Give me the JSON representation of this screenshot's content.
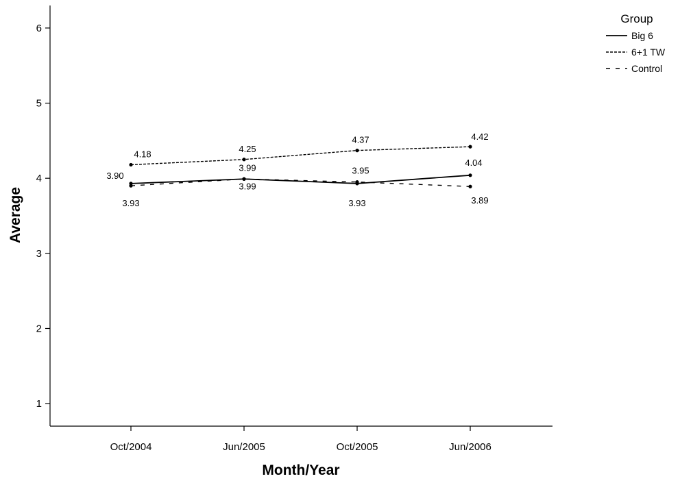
{
  "chart_data": {
    "type": "line",
    "xlabel": "Month/Year",
    "ylabel": "Average",
    "categories": [
      "Oct/2004",
      "Jun/2005",
      "Oct/2005",
      "Jun/2006"
    ],
    "ylim": [
      0.7,
      6.3
    ],
    "yticks": [
      1,
      2,
      3,
      4,
      5,
      6
    ],
    "grid": false,
    "legend": {
      "title": "Group",
      "placement": "top-right"
    },
    "series": [
      {
        "name": "Big 6",
        "line_style": "solid",
        "values": [
          3.93,
          3.99,
          3.93,
          4.04
        ],
        "labels": [
          "3.93",
          "3.99",
          "3.93",
          "4.04"
        ]
      },
      {
        "name": "6+1 TW",
        "line_style": "dotted",
        "values": [
          4.18,
          4.25,
          4.37,
          4.42
        ],
        "labels": [
          "4.18",
          "4.25",
          "4.37",
          "4.42"
        ]
      },
      {
        "name": "Control",
        "line_style": "dashed",
        "values": [
          3.9,
          3.99,
          3.95,
          3.89
        ],
        "labels": [
          "3.90",
          "3.99",
          "3.95",
          "3.89"
        ]
      }
    ],
    "colors": {
      "line": "#000000",
      "background": "#ffffff"
    }
  }
}
